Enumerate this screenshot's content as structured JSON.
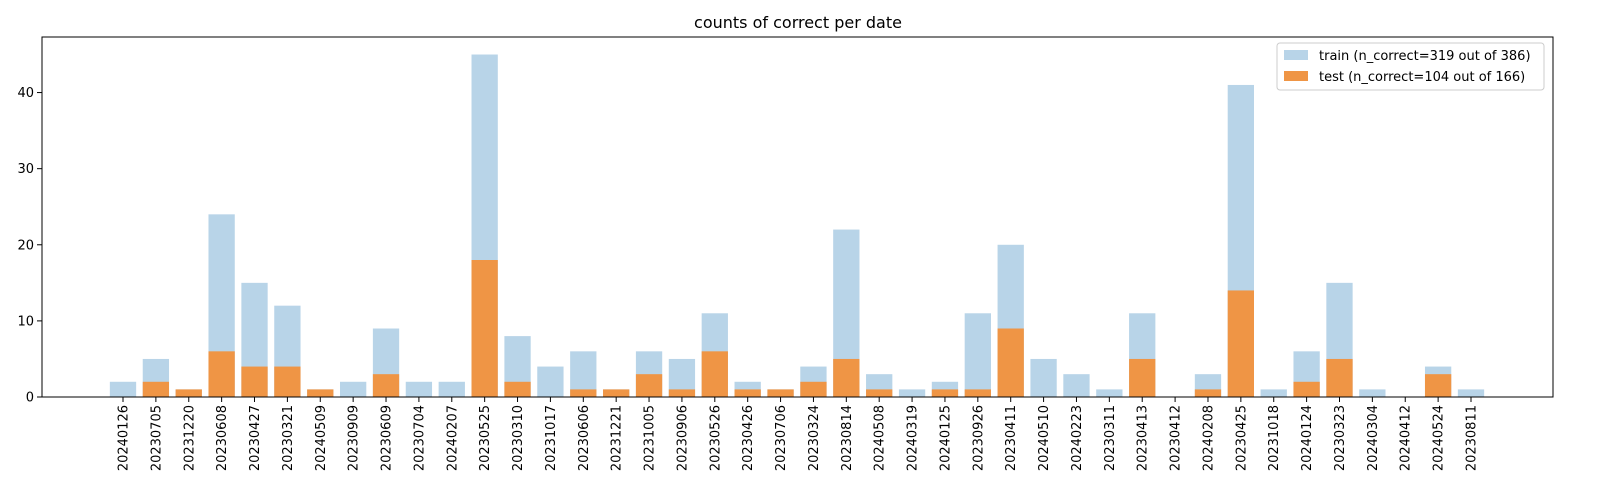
{
  "chart_data": {
    "type": "bar",
    "title": "counts of correct per date",
    "xlabel": "",
    "ylabel": "",
    "ylim": [
      0,
      47.3
    ],
    "yticks": [
      0,
      10,
      20,
      30,
      40
    ],
    "grid": false,
    "legend_position": "top-right",
    "overlap": true,
    "categories": [
      "20240126",
      "20230705",
      "20231220",
      "20230608",
      "20230427",
      "20230321",
      "20240509",
      "20230909",
      "20230609",
      "20230704",
      "20240207",
      "20230525",
      "20230310",
      "20231017",
      "20230606",
      "20231221",
      "20231005",
      "20230906",
      "20230526",
      "20230426",
      "20230706",
      "20230324",
      "20230814",
      "20240508",
      "20240319",
      "20240125",
      "20230926",
      "20230411",
      "20240510",
      "20240223",
      "20230311",
      "20230413",
      "20230412",
      "20240208",
      "20230425",
      "20231018",
      "20240124",
      "20230323",
      "20240304",
      "20240412",
      "20240524",
      "20230811"
    ],
    "series": [
      {
        "name": "train (n_correct=319 out of 386)",
        "color": "#b8d4e8",
        "values": [
          2,
          5,
          1,
          24,
          15,
          12,
          1,
          2,
          9,
          2,
          2,
          45,
          8,
          4,
          6,
          1,
          6,
          5,
          11,
          2,
          1,
          4,
          22,
          3,
          1,
          2,
          11,
          20,
          5,
          3,
          1,
          11,
          0,
          3,
          41,
          1,
          6,
          15,
          1,
          0,
          4,
          1
        ]
      },
      {
        "name": "test (n_correct=104 out of 166)",
        "color": "#ef9545",
        "values": [
          0,
          2,
          1,
          6,
          4,
          4,
          1,
          0,
          3,
          0,
          0,
          18,
          2,
          0,
          1,
          1,
          3,
          1,
          6,
          1,
          1,
          2,
          5,
          1,
          0,
          1,
          1,
          9,
          0,
          0,
          0,
          5,
          0,
          1,
          14,
          0,
          2,
          5,
          0,
          0,
          3,
          0
        ]
      }
    ]
  }
}
